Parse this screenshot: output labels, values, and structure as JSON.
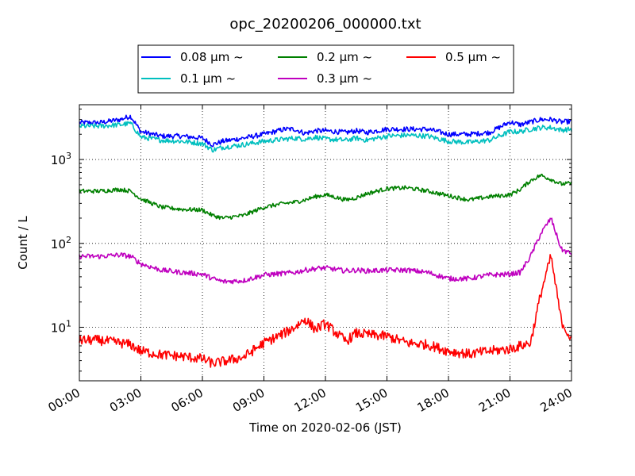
{
  "chart_data": {
    "type": "line",
    "title": "opc_20200206_000000.txt",
    "xlabel": "Time on 2020-02-06 (JST)",
    "ylabel": "Count / L",
    "yscale": "log",
    "ylim": [
      2.3,
      4500
    ],
    "xlim": [
      "00:00",
      "24:00"
    ],
    "x_tick_labels": [
      "00:00",
      "03:00",
      "06:00",
      "09:00",
      "12:00",
      "15:00",
      "18:00",
      "21:00",
      "24:00"
    ],
    "y_tick_labels": [
      {
        "base": "10",
        "exp": "1"
      },
      {
        "base": "10",
        "exp": "2"
      },
      {
        "base": "10",
        "exp": "3"
      }
    ],
    "grid": true,
    "legend_position": "top-center",
    "x_hours": [
      0,
      1,
      2,
      2.5,
      3,
      4,
      5,
      6,
      6.5,
      7,
      8,
      9,
      10,
      10.5,
      11,
      11.5,
      12,
      13,
      13.5,
      14,
      15,
      16,
      17,
      18,
      19,
      20,
      21,
      21.5,
      22,
      22.5,
      23,
      23.5,
      24
    ],
    "series": [
      {
        "name": "0.08 μm ~",
        "color": "#0000ff",
        "values": [
          2750,
          2750,
          3000,
          3300,
          2150,
          1900,
          1900,
          1800,
          1500,
          1650,
          1800,
          2000,
          2300,
          2300,
          2050,
          2200,
          2200,
          2100,
          2200,
          2100,
          2300,
          2300,
          2300,
          2000,
          2000,
          2100,
          2800,
          2600,
          2800,
          3000,
          3000,
          2800,
          2850
        ]
      },
      {
        "name": "0.1 μm ~",
        "color": "#00bfbf",
        "values": [
          2500,
          2500,
          2600,
          2700,
          1850,
          1700,
          1650,
          1550,
          1300,
          1400,
          1500,
          1650,
          1750,
          1800,
          1750,
          1850,
          1750,
          1700,
          1800,
          1700,
          1900,
          1950,
          1900,
          1650,
          1600,
          1700,
          2150,
          2150,
          2300,
          2400,
          2400,
          2250,
          2300
        ]
      },
      {
        "name": "0.2 μm ~",
        "color": "#008000",
        "values": [
          420,
          420,
          440,
          420,
          340,
          270,
          255,
          250,
          215,
          200,
          215,
          270,
          300,
          310,
          330,
          360,
          380,
          330,
          350,
          390,
          450,
          460,
          420,
          370,
          330,
          360,
          380,
          440,
          560,
          650,
          580,
          510,
          520
        ]
      },
      {
        "name": "0.3 μm ~",
        "color": "#bf00bf",
        "values": [
          70,
          70,
          73,
          70,
          57,
          48,
          45,
          43,
          38,
          35,
          36,
          42,
          44,
          45,
          48,
          50,
          51,
          47,
          48,
          47,
          48,
          48,
          45,
          38,
          38,
          42,
          43,
          45,
          70,
          130,
          200,
          85,
          75
        ]
      },
      {
        "name": "0.5 μm ~",
        "color": "#ff0000",
        "values": [
          7,
          7,
          6.5,
          6.2,
          5.2,
          4.7,
          4.5,
          4.2,
          3.7,
          3.9,
          4.4,
          6.5,
          8.5,
          10,
          12.5,
          9.5,
          11,
          6.8,
          8.5,
          8.2,
          7.8,
          6.5,
          6.2,
          5.2,
          4.8,
          5.2,
          5.5,
          6,
          6.5,
          25,
          70,
          12,
          7
        ]
      }
    ]
  }
}
